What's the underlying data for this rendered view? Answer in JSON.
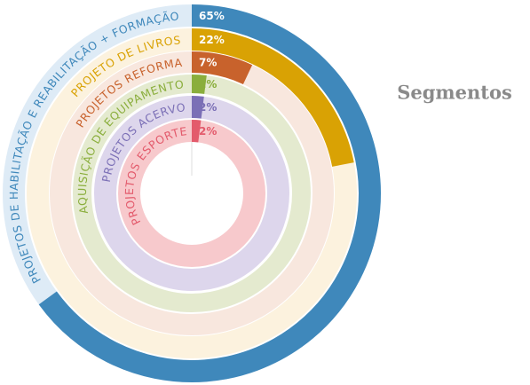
{
  "chart_data": {
    "type": "radial-bar",
    "title": "Segmentos",
    "categories": [
      "PROJETOS DE HABILITAÇÃO E REABILITAÇÃO + FORMAÇÃO",
      "PROJETO DE LIVROS",
      "PROJETOS REFORMA",
      "AQUISIÇÃO DE EQUIPAMENTO",
      "PROJETOS ACERVO",
      "PROJETOS ESPORTE"
    ],
    "values": [
      65,
      22,
      7,
      2,
      2,
      2
    ],
    "value_labels": [
      "65%",
      "22%",
      "7%",
      "2%",
      "2%",
      "2%"
    ],
    "colors": [
      "#3f88bb",
      "#d9a204",
      "#c8622c",
      "#8aae3c",
      "#7b6fb6",
      "#e35b6c"
    ],
    "track_colors": [
      "#deebf6",
      "#fcf2de",
      "#f8e7de",
      "#e4eacf",
      "#ddd6ec",
      "#f7c9cc"
    ],
    "ylim": [
      0,
      100
    ]
  }
}
